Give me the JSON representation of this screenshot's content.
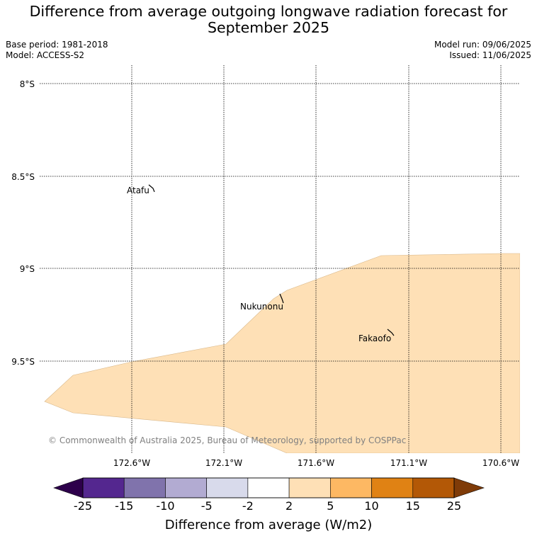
{
  "title_line1": "Difference from average outgoing longwave radiation forecast for",
  "title_line2": "September 2025",
  "base_period": "Base period: 1981-2018",
  "model": "Model: ACCESS-S2",
  "model_run": "Model run: 09/06/2025",
  "issued": "Issued: 11/06/2025",
  "latitude_labels": [
    "8°S",
    "8.5°S",
    "9°S",
    "9.5°S"
  ],
  "longitude_labels": [
    "172.6°W",
    "172.1°W",
    "171.6°W",
    "171.1°W",
    "170.6°W"
  ],
  "places": [
    {
      "name": "Atafu"
    },
    {
      "name": "Nukunonu"
    },
    {
      "name": "Fakaofo"
    }
  ],
  "forecast_region_category": "2 to 5",
  "credit": "© Commonwealth of Australia 2025, Bureau of Meteorology, supported by COSPPac",
  "colorbar": {
    "title": "Difference from average (W/m2)",
    "ticks": [
      "-25",
      "-15",
      "-10",
      "-5",
      "-2",
      "2",
      "5",
      "10",
      "15",
      "25"
    ],
    "colors": [
      "#54278f",
      "#8073ac",
      "#b2abd2",
      "#d8daeb",
      "#ffffff",
      "#fee0b6",
      "#fdb863",
      "#e08214",
      "#b35806"
    ],
    "under_color": "#2d004b",
    "over_color": "#7f3b08"
  }
}
